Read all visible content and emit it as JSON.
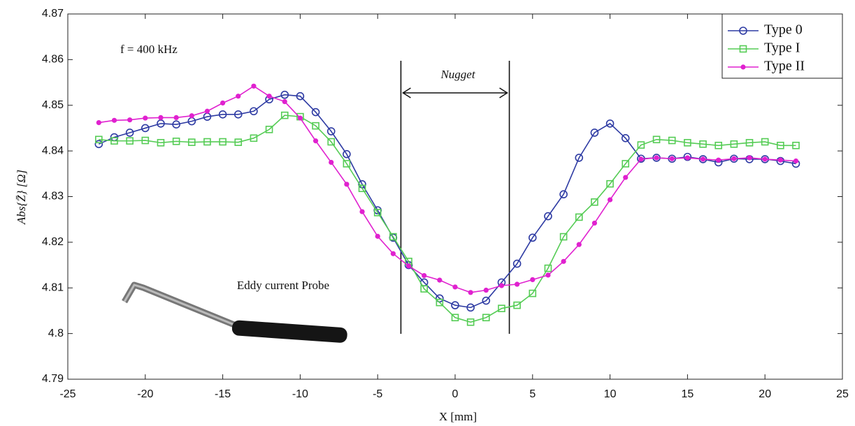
{
  "chart_data": {
    "type": "line",
    "xlabel": "X [mm]",
    "ylabel": "Abs{Z̄} [Ω]",
    "annotations": {
      "frequency": "f  =  400 kHz",
      "nugget": "Nugget",
      "probe": "Eddy current Probe"
    },
    "nugget_bounds": [
      -3.5,
      3.5
    ],
    "x": [
      -23,
      -22,
      -21,
      -20,
      -19,
      -18,
      -17,
      -16,
      -15,
      -14,
      -13,
      -12,
      -11,
      -10,
      -9,
      -8,
      -7,
      -6,
      -5,
      -4,
      -3,
      -2,
      -1,
      0,
      1,
      2,
      3,
      4,
      5,
      6,
      7,
      8,
      9,
      10,
      11,
      12,
      13,
      14,
      15,
      16,
      17,
      18,
      19,
      20,
      21,
      22
    ],
    "series": [
      {
        "name": "Type 0",
        "color": "#2e3ba3",
        "marker": "circle",
        "values": [
          4.8415,
          4.843,
          4.844,
          4.845,
          4.846,
          4.8458,
          4.8465,
          4.8475,
          4.848,
          4.848,
          4.8487,
          4.8513,
          4.8523,
          4.852,
          4.8485,
          4.8443,
          4.8393,
          4.8327,
          4.827,
          4.821,
          4.815,
          4.8112,
          4.8077,
          4.8062,
          4.8057,
          4.8072,
          4.8112,
          4.8153,
          4.821,
          4.8257,
          4.8305,
          4.8385,
          4.844,
          4.846,
          4.8428,
          4.8383,
          4.8385,
          4.8383,
          4.8387,
          4.8382,
          4.8375,
          4.8383,
          4.8382,
          4.8382,
          4.8378,
          4.8372
        ]
      },
      {
        "name": "Type I",
        "color": "#55cc55",
        "marker": "square",
        "values": [
          4.8425,
          4.8422,
          4.8422,
          4.8423,
          4.8418,
          4.8421,
          4.8419,
          4.842,
          4.842,
          4.8419,
          4.8428,
          4.8447,
          4.8478,
          4.8475,
          4.8455,
          4.842,
          4.8372,
          4.8318,
          4.8265,
          4.8212,
          4.8158,
          4.8098,
          4.8068,
          4.8035,
          4.8025,
          4.8035,
          4.8055,
          4.8062,
          4.8088,
          4.8143,
          4.8212,
          4.8255,
          4.8288,
          4.8328,
          4.8372,
          4.8413,
          4.8425,
          4.8423,
          4.8418,
          4.8415,
          4.8412,
          4.8415,
          4.8418,
          4.842,
          4.8412,
          4.8412
        ]
      },
      {
        "name": "Type II",
        "color": "#e021cf",
        "marker": "dot",
        "values": [
          4.8462,
          4.8467,
          4.8468,
          4.8472,
          4.8473,
          4.8473,
          4.8477,
          4.8487,
          4.8505,
          4.852,
          4.8542,
          4.852,
          4.8508,
          4.8472,
          4.8422,
          4.8375,
          4.8327,
          4.8267,
          4.8213,
          4.8175,
          4.8148,
          4.8127,
          4.8117,
          4.8102,
          4.809,
          4.8095,
          4.8105,
          4.8108,
          4.8118,
          4.8128,
          4.8158,
          4.8195,
          4.8242,
          4.8293,
          4.8342,
          4.8382,
          4.8385,
          4.8383,
          4.8385,
          4.8382,
          4.838,
          4.8383,
          4.8385,
          4.8382,
          4.838,
          4.8378
        ]
      }
    ],
    "xlim": [
      -25,
      25
    ],
    "xticks": [
      -25,
      -20,
      -15,
      -10,
      -5,
      0,
      5,
      10,
      15,
      20,
      25
    ],
    "ylim": [
      4.79,
      4.87
    ],
    "yticks": [
      4.79,
      4.8,
      4.81,
      4.82,
      4.83,
      4.84,
      4.85,
      4.86,
      4.87
    ],
    "legend": "upper right"
  }
}
